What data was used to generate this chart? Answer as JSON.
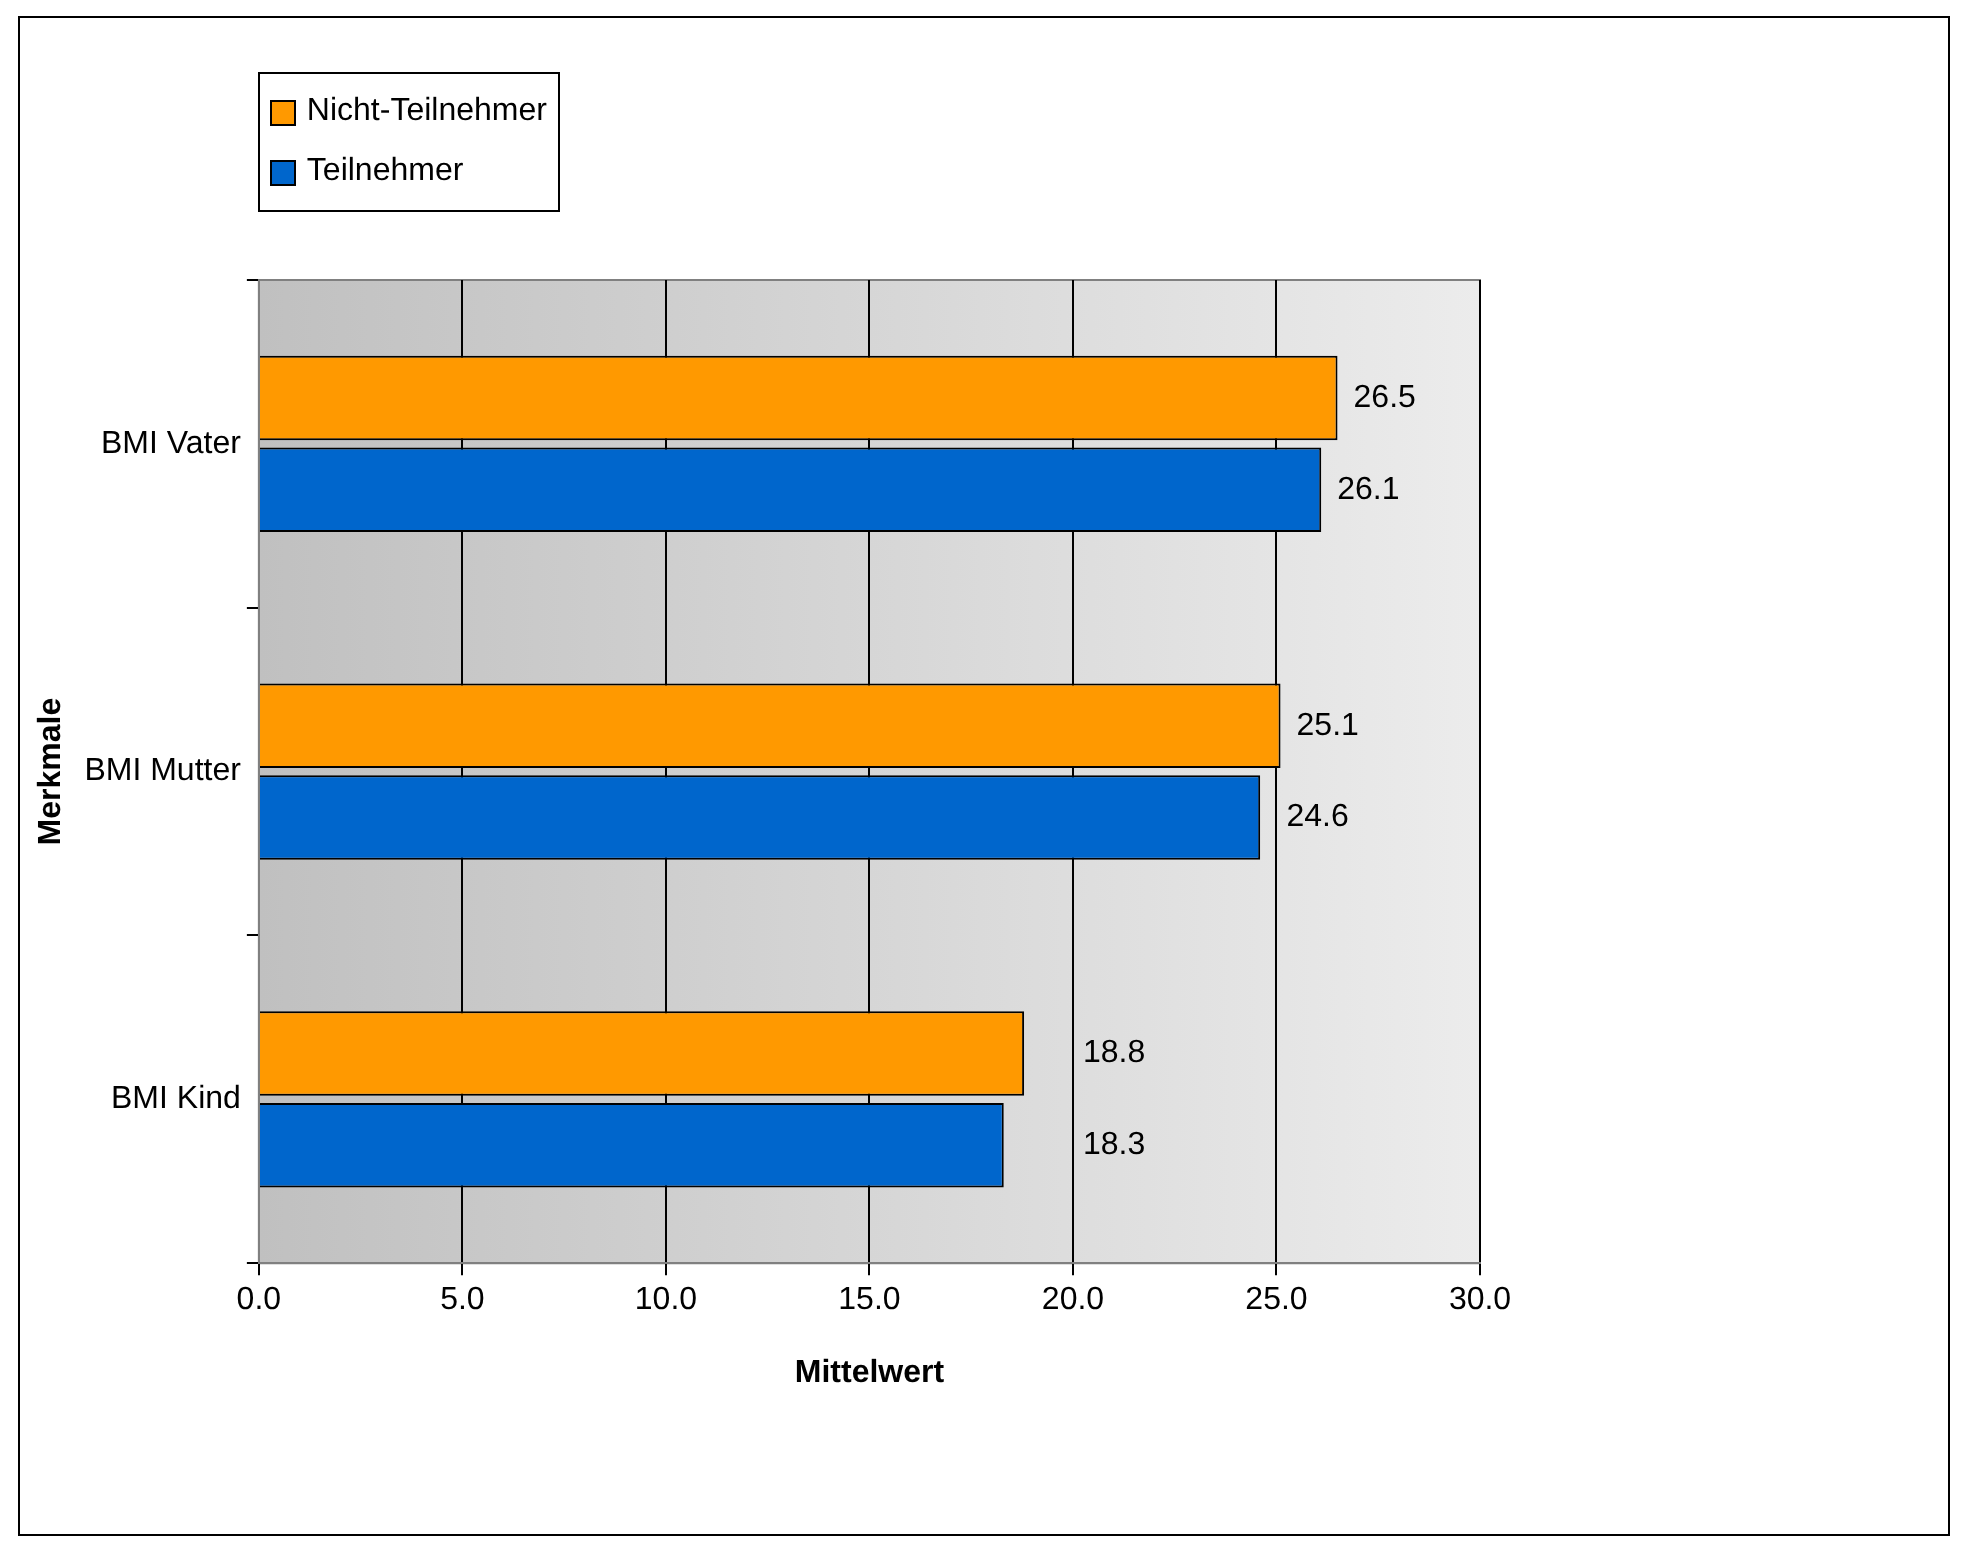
{
  "chart_data": {
    "type": "bar",
    "orientation": "horizontal",
    "xlabel": "Mittelwert",
    "ylabel": "Merkmale",
    "categories": [
      "BMI Vater",
      "BMI Mutter",
      "BMI Kind"
    ],
    "series": [
      {
        "name": "Nicht-Teilnehmer",
        "color": "#ff9900",
        "values": [
          26.5,
          25.1,
          18.8
        ]
      },
      {
        "name": "Teilnehmer",
        "color": "#0066cc",
        "values": [
          26.1,
          24.6,
          18.3
        ]
      }
    ],
    "xlim": [
      0,
      30
    ],
    "xticks": [
      {
        "value": 0,
        "label": "0.0"
      },
      {
        "value": 5,
        "label": "5.0"
      },
      {
        "value": 10,
        "label": "10.0"
      },
      {
        "value": 15,
        "label": "15.0"
      },
      {
        "value": 20,
        "label": "20.0"
      },
      {
        "value": 25,
        "label": "25.0"
      },
      {
        "value": 30,
        "label": "30.0"
      }
    ],
    "grid": "x",
    "legend": "top left",
    "data_labels": true
  }
}
